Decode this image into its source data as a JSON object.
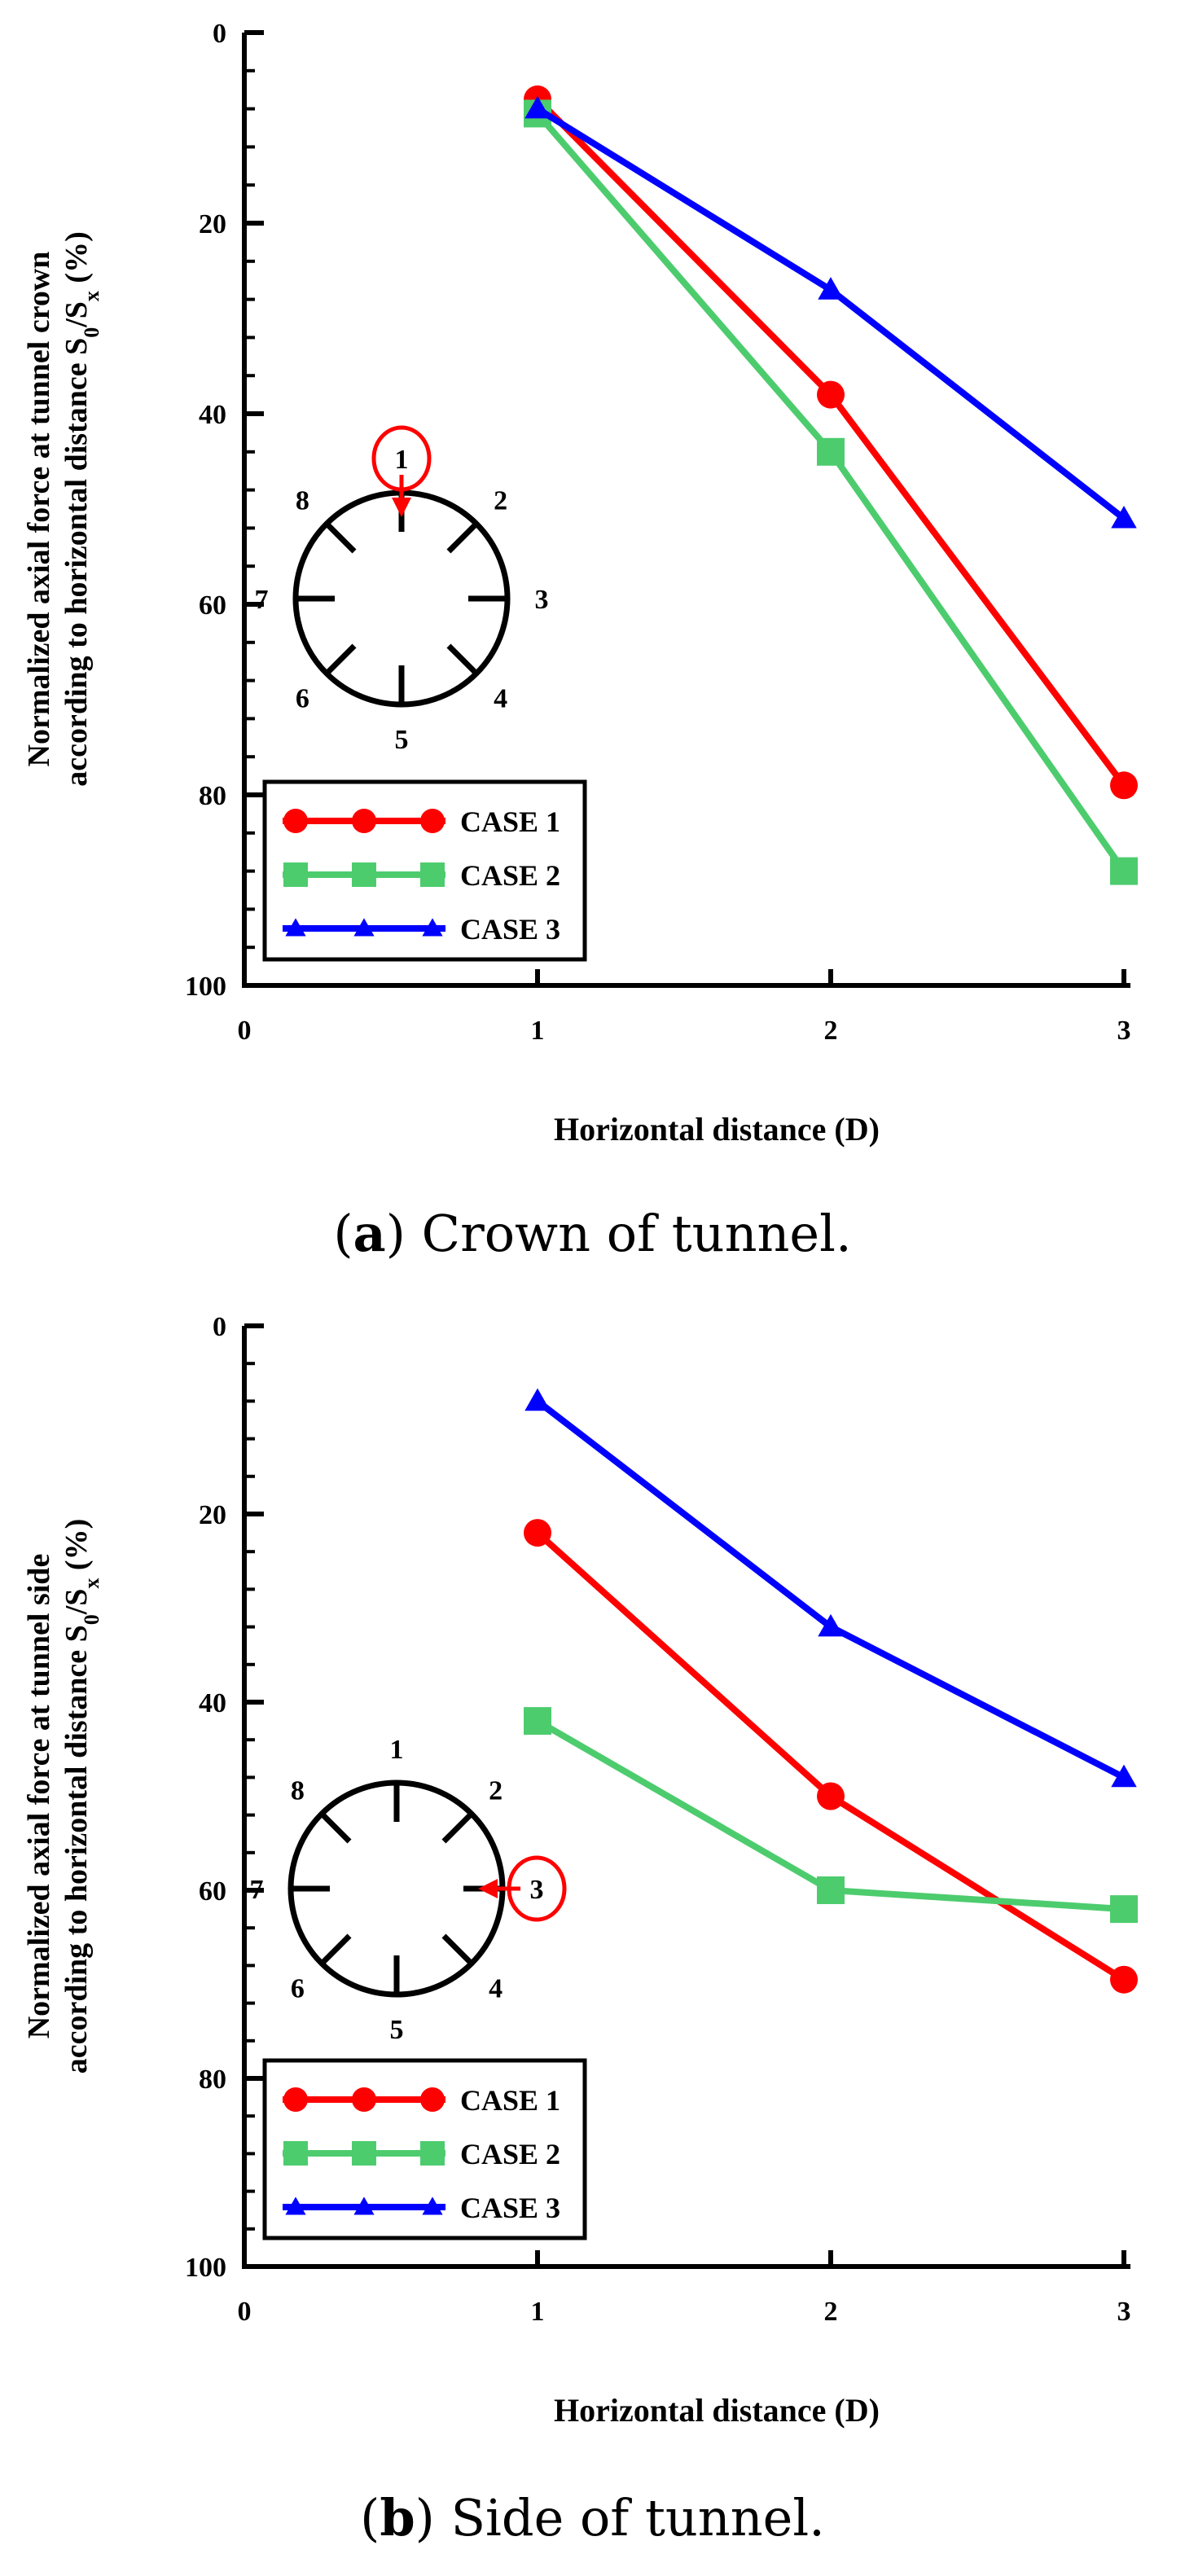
{
  "chart_data": [
    {
      "type": "line",
      "panel_label": "a",
      "caption": "Crown of tunnel.",
      "ylabel_line1": "Normalized axial force at tunnel crown",
      "ylabel_line2": "according to horizontal distance S",
      "ylabel_sub0": "0",
      "ylabel_slash": "/S",
      "ylabel_subx": "x",
      "ylabel_pct": " (%)",
      "xlabel": "Horizontal distance (D)",
      "xlim": [
        0,
        3
      ],
      "ylim": [
        0,
        100
      ],
      "y_inverted": true,
      "x_ticks": [
        "0",
        "1",
        "2",
        "3"
      ],
      "y_ticks": [
        "0",
        "20",
        "40",
        "60",
        "80",
        "100"
      ],
      "x": [
        1,
        2,
        3
      ],
      "series": [
        {
          "name": "CASE 1",
          "color": "#ff0000",
          "marker": "circle",
          "values": [
            7,
            38,
            79
          ]
        },
        {
          "name": "CASE 2",
          "color": "#4dcc6e",
          "marker": "square",
          "values": [
            8.5,
            44,
            88
          ]
        },
        {
          "name": "CASE 3",
          "color": "#0000ff",
          "marker": "triangle",
          "values": [
            8,
            27,
            51
          ]
        }
      ],
      "inset": {
        "labels": [
          "1",
          "2",
          "3",
          "4",
          "5",
          "6",
          "7",
          "8"
        ],
        "highlight": "1"
      }
    },
    {
      "type": "line",
      "panel_label": "b",
      "caption": "Side of tunnel.",
      "ylabel_line1": "Normalized axial force at tunnel side",
      "ylabel_line2": "according to horizontal distance S",
      "ylabel_sub0": "0",
      "ylabel_slash": "/S",
      "ylabel_subx": "x",
      "ylabel_pct": " (%)",
      "xlabel": "Horizontal distance (D)",
      "xlim": [
        0,
        3
      ],
      "ylim": [
        0,
        100
      ],
      "y_inverted": true,
      "x_ticks": [
        "0",
        "1",
        "2",
        "3"
      ],
      "y_ticks": [
        "0",
        "20",
        "40",
        "60",
        "80",
        "100"
      ],
      "x": [
        1,
        2,
        3
      ],
      "series": [
        {
          "name": "CASE 1",
          "color": "#ff0000",
          "marker": "circle",
          "values": [
            22,
            50,
            69.5
          ]
        },
        {
          "name": "CASE 2",
          "color": "#4dcc6e",
          "marker": "square",
          "values": [
            42,
            60,
            62
          ]
        },
        {
          "name": "CASE 3",
          "color": "#0000ff",
          "marker": "triangle",
          "values": [
            8,
            32,
            48
          ]
        }
      ],
      "inset": {
        "labels": [
          "1",
          "2",
          "3",
          "4",
          "5",
          "6",
          "7",
          "8"
        ],
        "highlight": "3"
      }
    }
  ]
}
